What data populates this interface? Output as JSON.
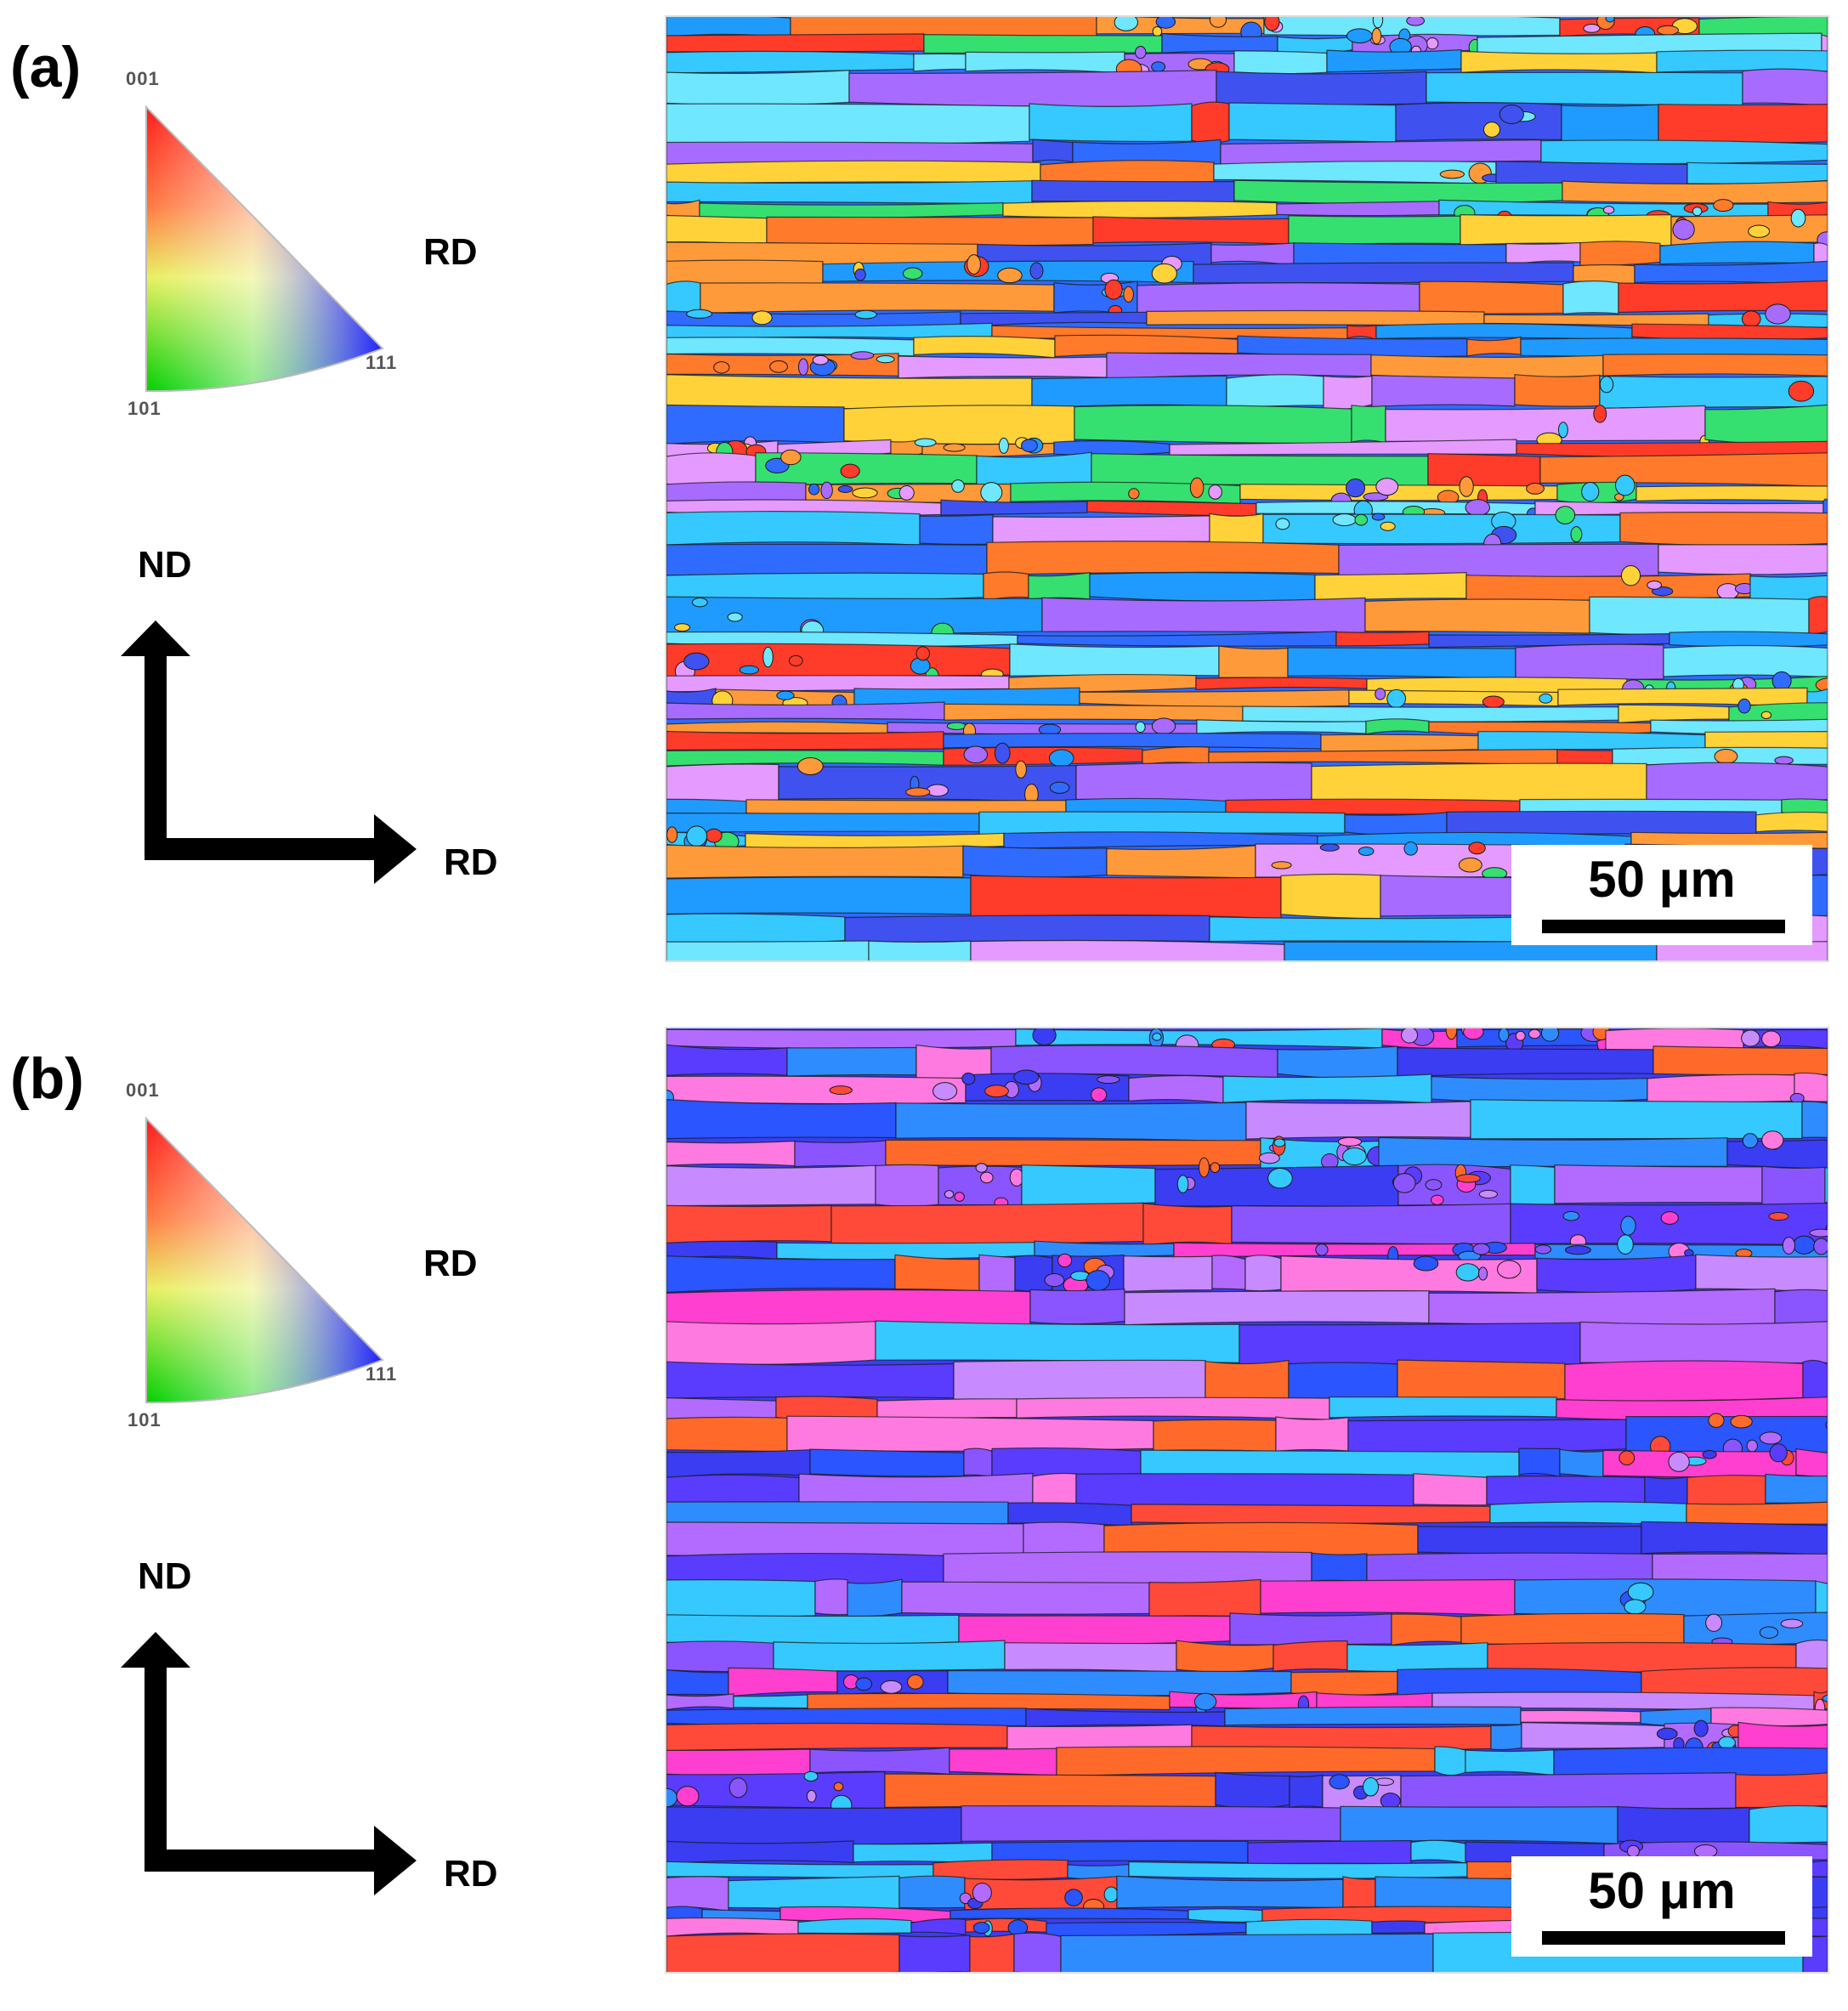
{
  "panels": [
    {
      "label": "(a)",
      "ipf": {
        "v001": "001",
        "v101": "101",
        "v111": "111",
        "direction": "RD"
      },
      "axes": {
        "vertical": "ND",
        "horizontal": "RD"
      },
      "scale_bar": "50 μm",
      "palette": [
        "#2f6bff",
        "#1f9bff",
        "#35c9ff",
        "#3f52f0",
        "#ff3b2a",
        "#ff7a2a",
        "#ff9a3a",
        "#a86bff",
        "#e59aff",
        "#35e070",
        "#ffd23a",
        "#6fe7ff"
      ],
      "seed": 11
    },
    {
      "label": "(b)",
      "ipf": {
        "v001": "001",
        "v101": "101",
        "v111": "111",
        "direction": "RD"
      },
      "axes": {
        "vertical": "ND",
        "horizontal": "RD"
      },
      "scale_bar": "50 μm",
      "palette": [
        "#3b3df2",
        "#2a55ff",
        "#8a55ff",
        "#b36bff",
        "#ff3fd0",
        "#ff4a3a",
        "#2f8cff",
        "#c78aff",
        "#ff7ae0",
        "#35c9ff",
        "#ff6a2a",
        "#5a3cff"
      ],
      "seed": 29
    }
  ]
}
